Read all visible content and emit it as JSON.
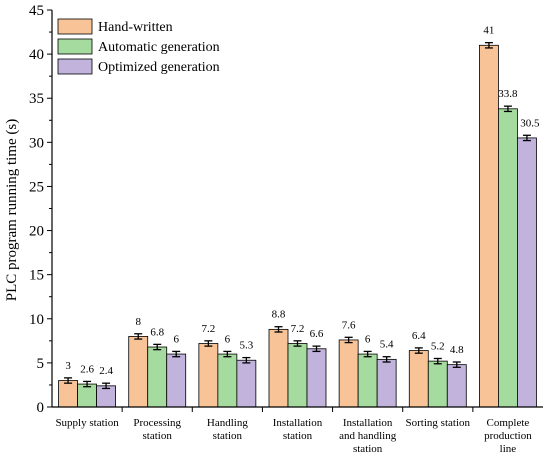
{
  "colors": {
    "hand_written": "#f8c396",
    "automatic": "#a6dba0",
    "optimized": "#c2b3dc"
  },
  "chart_data": {
    "type": "bar",
    "ylabel": "PLC program running time (s)",
    "ylim": [
      0,
      45
    ],
    "yticks": [
      0,
      5,
      10,
      15,
      20,
      25,
      30,
      35,
      40,
      45
    ],
    "legend_position": "top-left",
    "grid": false,
    "categories": [
      [
        "Supply station"
      ],
      [
        "Processing",
        "station"
      ],
      [
        "Handling",
        "station"
      ],
      [
        "Installation",
        "station"
      ],
      [
        "Installation",
        "and handling",
        "station"
      ],
      [
        "Sorting station"
      ],
      [
        "Complete",
        "production",
        "line"
      ]
    ],
    "series": [
      {
        "name": "Hand-written",
        "color": "#f8c396",
        "values": [
          3,
          8,
          7.2,
          8.8,
          7.6,
          6.4,
          41
        ],
        "errors": [
          0.3,
          0.3,
          0.3,
          0.3,
          0.3,
          0.3,
          0.3
        ]
      },
      {
        "name": "Automatic generation",
        "color": "#a6dba0",
        "values": [
          2.6,
          6.8,
          6,
          7.2,
          6,
          5.2,
          33.8
        ],
        "errors": [
          0.3,
          0.3,
          0.3,
          0.3,
          0.3,
          0.3,
          0.3
        ]
      },
      {
        "name": "Optimized generation",
        "color": "#c2b3dc",
        "values": [
          2.4,
          6,
          5.3,
          6.6,
          5.4,
          4.8,
          30.5
        ],
        "errors": [
          0.3,
          0.3,
          0.3,
          0.3,
          0.3,
          0.3,
          0.3
        ]
      }
    ],
    "value_labels": [
      [
        "3",
        "8",
        "7.2",
        "8.8",
        "7.6",
        "6.4",
        "41"
      ],
      [
        "2.6",
        "6.8",
        "6",
        "7.2",
        "6",
        "5.2",
        "33.8"
      ],
      [
        "2.4",
        "6",
        "5.3",
        "6.6",
        "5.4",
        "4.8",
        "30.5"
      ]
    ]
  }
}
